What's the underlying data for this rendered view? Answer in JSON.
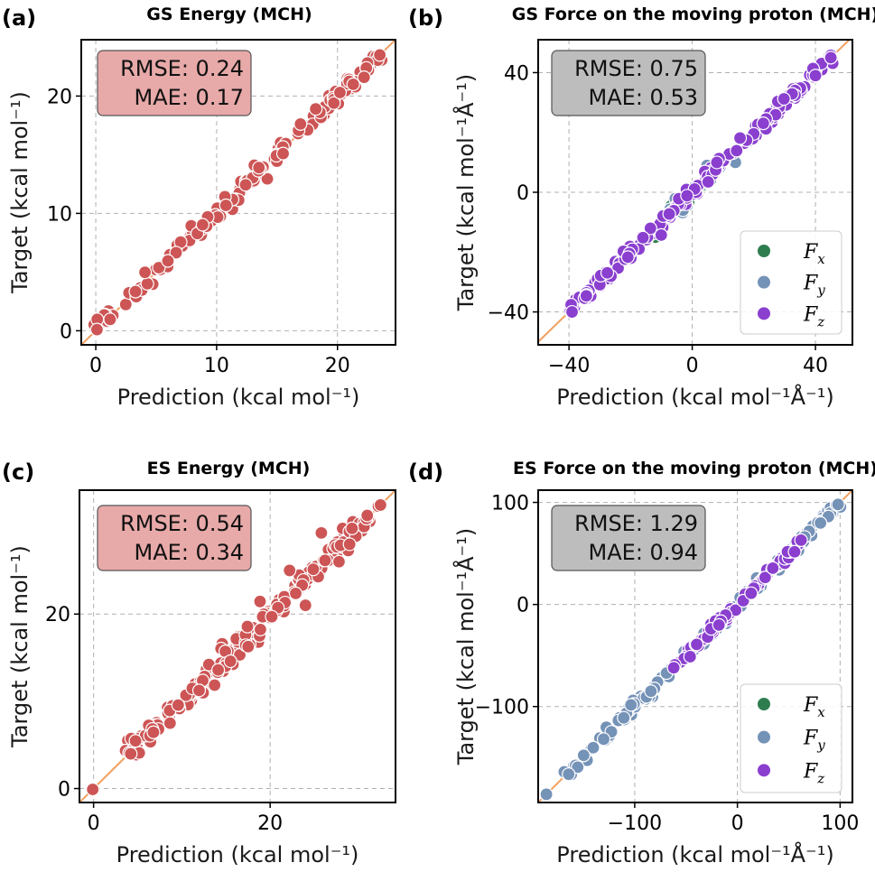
{
  "chart_data": [
    {
      "type": "scatter",
      "panel_label": "(a)",
      "title": "GS Energy (MCH)",
      "xlabel": "Prediction (kcal mol⁻¹)",
      "ylabel": "Target (kcal mol⁻¹)",
      "xlim": [
        -1.2,
        24.8
      ],
      "ylim": [
        -1.2,
        24.8
      ],
      "xticks": [
        0,
        10,
        20
      ],
      "yticks": [
        0,
        10,
        20
      ],
      "xtick_labels": [
        "0",
        "10",
        "20"
      ],
      "ytick_labels": [
        "0",
        "10",
        "20"
      ],
      "grid": true,
      "stats": {
        "rmse": "RMSE: 0.24",
        "mae": "MAE: 0.17",
        "box_color": "#e8a9a9"
      },
      "series": [
        {
          "color": "#cd5555",
          "range": [
            0,
            23.5
          ],
          "count": 150,
          "noise": 0.28,
          "points": [
            [
              0.1,
              0.1
            ],
            [
              13.5,
              13.9
            ],
            [
              15.5,
              15.1
            ],
            [
              18.2,
              18.9
            ],
            [
              19.7,
              19.4
            ],
            [
              20.2,
              20.3
            ],
            [
              21.3,
              21.0
            ],
            [
              22.2,
              21.6
            ],
            [
              23.5,
              23.5
            ]
          ]
        }
      ]
    },
    {
      "type": "scatter",
      "panel_label": "(b)",
      "title": "GS Force on the moving proton (MCH)",
      "xlabel": "Prediction (kcal mol⁻¹Å⁻¹)",
      "ylabel": "Target (kcal mol⁻¹Å⁻¹)",
      "xlim": [
        -50,
        52
      ],
      "ylim": [
        -51,
        51
      ],
      "xticks": [
        -40,
        0,
        40
      ],
      "yticks": [
        -40,
        0,
        40
      ],
      "xtick_labels": [
        "−40",
        "0",
        "40"
      ],
      "ytick_labels": [
        "−40",
        "0",
        "40"
      ],
      "grid": true,
      "stats": {
        "rmse": "RMSE: 0.75",
        "mae": "MAE: 0.53",
        "box_color": "#bdbdbd"
      },
      "legend_position": "lower-right",
      "series": [
        {
          "name": "F",
          "sub": "x",
          "color": "#2e7d4f",
          "range": [
            -10,
            5
          ],
          "count": 10,
          "noise": 0.8,
          "points": [
            [
              -12.0,
              -15.0
            ],
            [
              -8.0,
              -7.0
            ]
          ]
        },
        {
          "name": "F",
          "sub": "y",
          "color": "#7592b7",
          "range": [
            -12,
            12
          ],
          "count": 25,
          "noise": 0.9,
          "points": [
            [
              -3.0,
              -6.0
            ],
            [
              14.0,
              10.0
            ],
            [
              18.0,
              17.0
            ]
          ]
        },
        {
          "name": "F",
          "sub": "z",
          "color": "#8a3fcf",
          "range": [
            -39,
            45
          ],
          "count": 170,
          "noise": 0.9,
          "points": [
            [
              -39.0,
              -40.0
            ],
            [
              45.0,
              45.0
            ],
            [
              40.0,
              39.0
            ]
          ]
        }
      ]
    },
    {
      "type": "scatter",
      "panel_label": "(c)",
      "title": "ES Energy (MCH)",
      "xlabel": "Prediction (kcal mol⁻¹)",
      "ylabel": "Target (kcal mol⁻¹)",
      "xlim": [
        -1.6,
        34.2
      ],
      "ylim": [
        -1.6,
        34.2
      ],
      "xticks": [
        0,
        20
      ],
      "yticks": [
        0,
        20
      ],
      "xtick_labels": [
        "0",
        "20"
      ],
      "ytick_labels": [
        "0",
        "20"
      ],
      "grid": true,
      "stats": {
        "rmse": "RMSE: 0.54",
        "mae": "MAE: 0.34",
        "box_color": "#e8a9a9"
      },
      "series": [
        {
          "color": "#cd5555",
          "range": [
            3.5,
            32.5
          ],
          "count": 170,
          "noise": 0.55,
          "points": [
            [
              -0.1,
              -0.1
            ],
            [
              25.8,
              29.3
            ],
            [
              22.2,
              25.0
            ],
            [
              24.0,
              21.0
            ],
            [
              32.5,
              32.5
            ],
            [
              31.0,
              31.3
            ],
            [
              29.0,
              28.0
            ],
            [
              27.8,
              26.0
            ]
          ]
        }
      ]
    },
    {
      "type": "scatter",
      "panel_label": "(d)",
      "title": "ES Force on the moving proton (MCH)",
      "xlabel": "Prediction (kcal mol⁻¹Å⁻¹)",
      "ylabel": "Target (kcal mol⁻¹Å⁻¹)",
      "xlim": [
        -194,
        112
      ],
      "ylim": [
        -194,
        112
      ],
      "xticks": [
        -100,
        0,
        100
      ],
      "yticks": [
        -100,
        0,
        100
      ],
      "xtick_labels": [
        "−100",
        "0",
        "100"
      ],
      "ytick_labels": [
        "−100",
        "0",
        "100"
      ],
      "grid": true,
      "stats": {
        "rmse": "RMSE: 1.29",
        "mae": "MAE: 0.94",
        "box_color": "#bdbdbd"
      },
      "legend_position": "lower-right",
      "series": [
        {
          "name": "F",
          "sub": "x",
          "color": "#2e7d4f",
          "range": [
            -10,
            10
          ],
          "count": 5,
          "noise": 1.5,
          "points": []
        },
        {
          "name": "F",
          "sub": "y",
          "color": "#7592b7",
          "range": [
            -186,
            98
          ],
          "count": 150,
          "noise": 2.0,
          "points": [
            [
              -186.0,
              -186.0
            ],
            [
              98.0,
              98.0
            ],
            [
              20.0,
              16.0
            ]
          ]
        },
        {
          "name": "F",
          "sub": "z",
          "color": "#8a3fcf",
          "range": [
            -62,
            62
          ],
          "count": 80,
          "noise": 1.5,
          "points": [
            [
              -62.0,
              -62.0
            ],
            [
              62.0,
              63.0
            ]
          ]
        }
      ]
    }
  ]
}
